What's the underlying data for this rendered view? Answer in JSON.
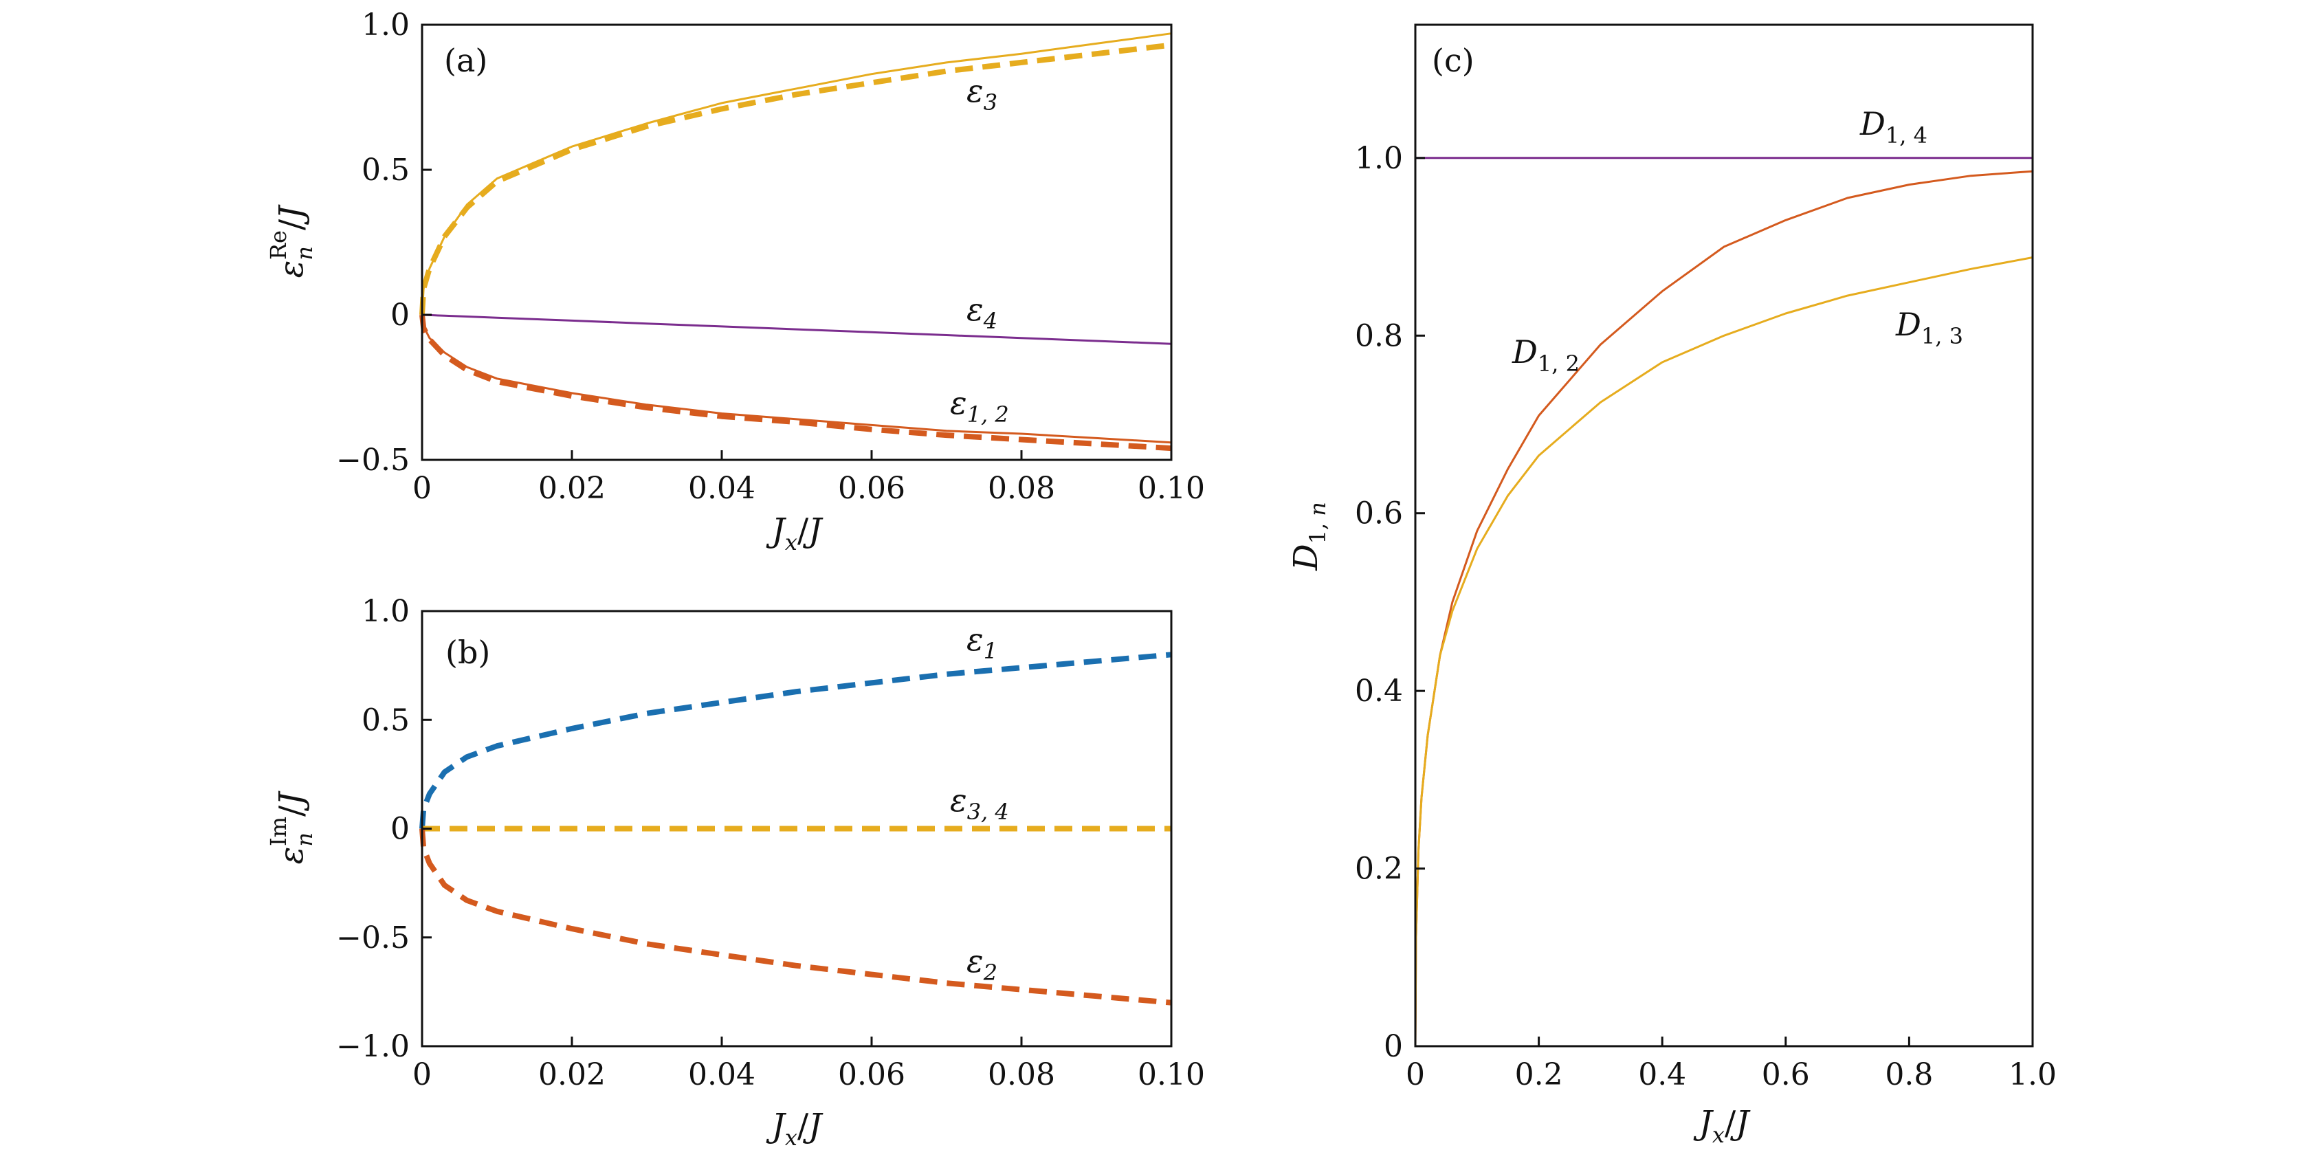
{
  "chart_data": [
    {
      "panel": "(a)",
      "type": "line",
      "xlabel": "Jx/J",
      "ylabel": "ε_n^Re/J",
      "xlim": [
        0,
        0.1
      ],
      "ylim": [
        -0.5,
        1.0
      ],
      "xticks": [
        0,
        0.02,
        0.04,
        0.06,
        0.08,
        0.1
      ],
      "xtick_labels": [
        "0",
        "0.02",
        "0.04",
        "0.06",
        "0.08",
        "0.10"
      ],
      "yticks": [
        -0.5,
        0,
        0.5,
        1.0
      ],
      "ytick_labels": [
        "−0.5",
        "0",
        "0.5",
        "1.0"
      ],
      "x": [
        0,
        0.0002,
        0.001,
        0.003,
        0.006,
        0.01,
        0.02,
        0.03,
        0.04,
        0.05,
        0.06,
        0.07,
        0.08,
        0.09,
        0.1
      ],
      "series": [
        {
          "name": "ε3",
          "style": "solid",
          "color": "#e6ac1e",
          "values": [
            0,
            0.09,
            0.16,
            0.27,
            0.38,
            0.47,
            0.58,
            0.66,
            0.73,
            0.78,
            0.83,
            0.87,
            0.9,
            0.935,
            0.97
          ]
        },
        {
          "name": "ε3 approx",
          "style": "dashed",
          "color": "#e6ac1e",
          "values": [
            0,
            0.09,
            0.16,
            0.27,
            0.37,
            0.46,
            0.57,
            0.65,
            0.71,
            0.76,
            0.8,
            0.84,
            0.87,
            0.9,
            0.93
          ]
        },
        {
          "name": "ε4",
          "style": "solid",
          "color": "#7b2d8e",
          "values": [
            0,
            -0.0002,
            -0.001,
            -0.003,
            -0.006,
            -0.01,
            -0.02,
            -0.03,
            -0.04,
            -0.05,
            -0.06,
            -0.07,
            -0.08,
            -0.09,
            -0.1
          ]
        },
        {
          "name": "ε1,2",
          "style": "solid",
          "color": "#d45a1e",
          "values": [
            0,
            -0.04,
            -0.08,
            -0.13,
            -0.18,
            -0.22,
            -0.27,
            -0.31,
            -0.34,
            -0.36,
            -0.38,
            -0.4,
            -0.41,
            -0.425,
            -0.44
          ]
        },
        {
          "name": "ε1,2 approx",
          "style": "dashed",
          "color": "#d45a1e",
          "values": [
            0,
            -0.045,
            -0.085,
            -0.14,
            -0.19,
            -0.23,
            -0.28,
            -0.32,
            -0.35,
            -0.37,
            -0.395,
            -0.415,
            -0.43,
            -0.445,
            -0.46
          ]
        }
      ],
      "labels": [
        "ε3",
        "ε4",
        "ε1, 2"
      ]
    },
    {
      "panel": "(b)",
      "type": "line",
      "xlabel": "Jx/J",
      "ylabel": "ε_n^Im/J",
      "xlim": [
        0,
        0.1
      ],
      "ylim": [
        -1.0,
        1.0
      ],
      "xticks": [
        0,
        0.02,
        0.04,
        0.06,
        0.08,
        0.1
      ],
      "xtick_labels": [
        "0",
        "0.02",
        "0.04",
        "0.06",
        "0.08",
        "0.10"
      ],
      "yticks": [
        -1.0,
        -0.5,
        0,
        0.5,
        1.0
      ],
      "ytick_labels": [
        "−1.0",
        "−0.5",
        "0",
        "0.5",
        "1.0"
      ],
      "x": [
        0,
        0.0002,
        0.001,
        0.003,
        0.006,
        0.01,
        0.02,
        0.03,
        0.04,
        0.05,
        0.06,
        0.07,
        0.08,
        0.09,
        0.1
      ],
      "series": [
        {
          "name": "ε1",
          "style": "dashed",
          "color": "#1a6fb0",
          "values": [
            0,
            0.09,
            0.16,
            0.26,
            0.33,
            0.38,
            0.46,
            0.53,
            0.58,
            0.63,
            0.67,
            0.71,
            0.74,
            0.77,
            0.8
          ]
        },
        {
          "name": "ε3,4",
          "style": "dashed",
          "color": "#e6ac1e",
          "values": [
            0,
            0,
            0,
            0,
            0,
            0,
            0,
            0,
            0,
            0,
            0,
            0,
            0,
            0,
            0
          ]
        },
        {
          "name": "ε2",
          "style": "dashed",
          "color": "#d45a1e",
          "values": [
            0,
            -0.09,
            -0.16,
            -0.26,
            -0.33,
            -0.38,
            -0.46,
            -0.53,
            -0.58,
            -0.63,
            -0.67,
            -0.71,
            -0.74,
            -0.77,
            -0.8
          ]
        }
      ],
      "labels": [
        "ε1",
        "ε3, 4",
        "ε2"
      ]
    },
    {
      "panel": "(c)",
      "type": "line",
      "xlabel": "Jx/J",
      "ylabel": "D1,n",
      "xlim": [
        0,
        1.0
      ],
      "ylim": [
        0,
        1.15
      ],
      "xticks": [
        0,
        0.2,
        0.4,
        0.6,
        0.8,
        1.0
      ],
      "xtick_labels": [
        "0",
        "0.2",
        "0.4",
        "0.6",
        "0.8",
        "1.0"
      ],
      "yticks": [
        0,
        0.2,
        0.4,
        0.6,
        0.8,
        1.0
      ],
      "ytick_labels": [
        "0",
        "0.2",
        "0.4",
        "0.6",
        "0.8",
        "1.0"
      ],
      "x": [
        0,
        0.001,
        0.005,
        0.01,
        0.02,
        0.04,
        0.06,
        0.1,
        0.15,
        0.2,
        0.3,
        0.4,
        0.5,
        0.6,
        0.7,
        0.8,
        0.9,
        1.0
      ],
      "series": [
        {
          "name": "D1,4",
          "style": "solid",
          "color": "#7b2d8e",
          "values": [
            1,
            1,
            1,
            1,
            1,
            1,
            1,
            1,
            1,
            1,
            1,
            1,
            1,
            1,
            1,
            1,
            1,
            1
          ]
        },
        {
          "name": "D1,2",
          "style": "solid",
          "color": "#d45a1e",
          "values": [
            0,
            0.12,
            0.22,
            0.28,
            0.35,
            0.44,
            0.5,
            0.58,
            0.65,
            0.71,
            0.79,
            0.85,
            0.9,
            0.93,
            0.955,
            0.97,
            0.98,
            0.985
          ]
        },
        {
          "name": "D1,3",
          "style": "solid",
          "color": "#e6ac1e",
          "values": [
            0,
            0.12,
            0.22,
            0.28,
            0.35,
            0.44,
            0.49,
            0.56,
            0.62,
            0.665,
            0.725,
            0.77,
            0.8,
            0.825,
            0.845,
            0.86,
            0.875,
            0.888
          ]
        }
      ],
      "labels": [
        "D1, 4",
        "D1, 2",
        "D1, 3"
      ]
    }
  ],
  "panel_labels": {
    "a": "(a)",
    "b": "(b)",
    "c": "(c)"
  },
  "axis_labels": {
    "a_x": "Jx/J",
    "a_y": "εnRe/J",
    "b_x": "Jx/J",
    "b_y": "εnIm/J",
    "c_x": "Jx/J",
    "c_y": "D1, n"
  },
  "curve_labels": {
    "a_eps3": "ε3",
    "a_eps4": "ε4",
    "a_eps12": "ε1, 2",
    "b_eps1": "ε1",
    "b_eps34": "ε3, 4",
    "b_eps2": "ε2",
    "c_d14": "D1, 4",
    "c_d12": "D1, 2",
    "c_d13": "D1, 3"
  }
}
